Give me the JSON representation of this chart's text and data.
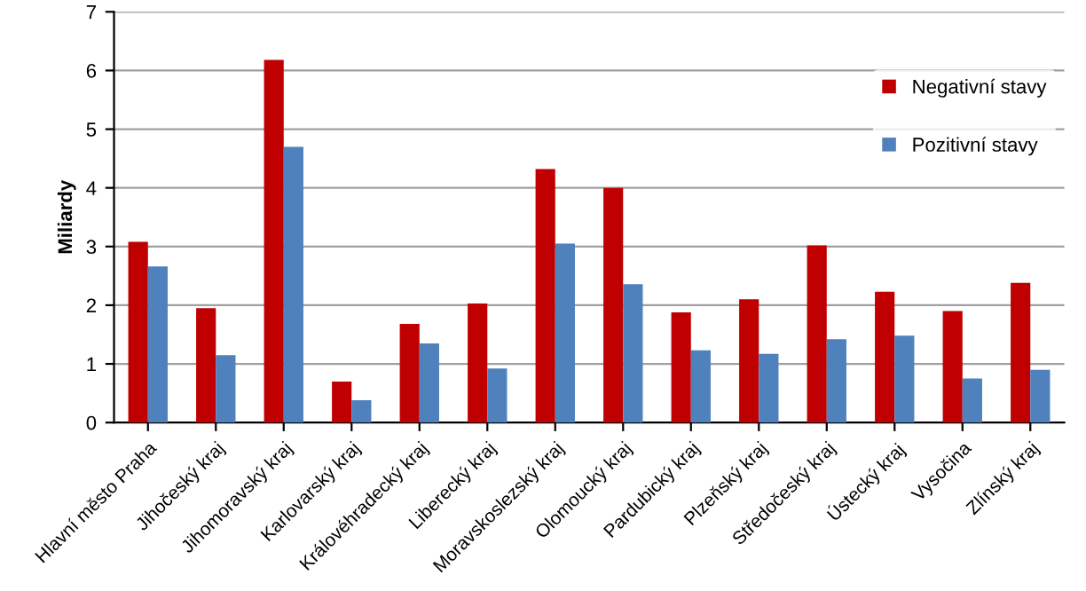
{
  "chart_data": {
    "type": "bar",
    "ylabel": "Miliardy",
    "categories": [
      "Hlavní město Praha",
      "Jihočeský kraj",
      "Jihomoravský kraj",
      "Karlovarský kraj",
      "Královéhradecký kraj",
      "Liberecký kraj",
      "Moravskoslezský kraj",
      "Olomoucký kraj",
      "Pardubický kraj",
      "Plzeňský kraj",
      "Středočeský kraj",
      "Ústecký kraj",
      "Vysočina",
      "Zlínský kraj"
    ],
    "series": [
      {
        "name": "Negativní stavy",
        "color": "#c00000",
        "values": [
          3.08,
          1.95,
          6.18,
          0.7,
          1.68,
          2.03,
          4.32,
          4.0,
          1.88,
          2.1,
          3.02,
          2.23,
          1.9,
          2.38
        ]
      },
      {
        "name": "Pozitivní stavy",
        "color": "#4f81bd",
        "values": [
          2.66,
          1.15,
          4.7,
          0.38,
          1.35,
          0.92,
          3.05,
          2.36,
          1.23,
          1.17,
          1.42,
          1.48,
          0.75,
          0.9
        ]
      }
    ],
    "ylim": [
      0,
      7
    ],
    "yticks": [
      0,
      1,
      2,
      3,
      4,
      5,
      6,
      7
    ],
    "grid": "y",
    "legend": "top right"
  }
}
